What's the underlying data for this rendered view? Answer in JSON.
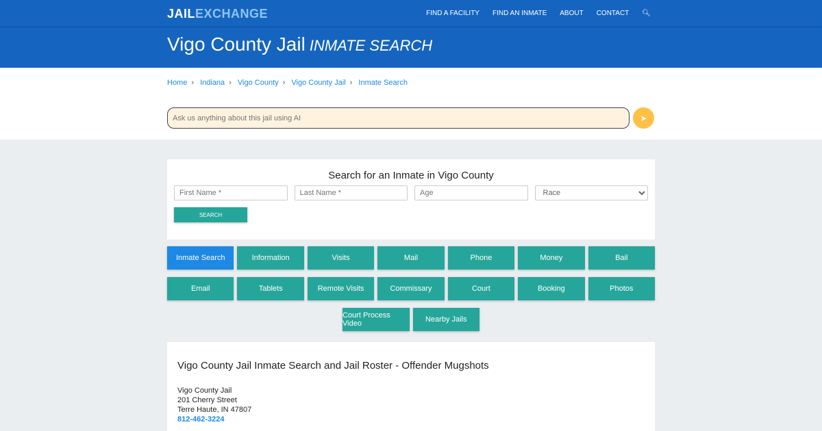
{
  "nav": {
    "logo_a": "JAIL",
    "logo_b": "EXCHANGE",
    "items": [
      "FIND A FACILITY",
      "FIND AN INMATE",
      "ABOUT",
      "CONTACT"
    ]
  },
  "hero": {
    "title": "Vigo County Jail",
    "subtitle": "INMATE SEARCH"
  },
  "breadcrumb": [
    "Home",
    "Indiana",
    "Vigo County",
    "Vigo County Jail",
    "Inmate Search"
  ],
  "ai": {
    "placeholder": "Ask us anything about this jail using AI"
  },
  "search": {
    "title": "Search for an Inmate in Vigo County",
    "first": "First Name *",
    "last": "Last Name *",
    "age": "Age",
    "race": "Race",
    "button": "SEARCH"
  },
  "buttons": [
    [
      "Inmate Search",
      "Information",
      "Visits",
      "Mail",
      "Phone",
      "Money",
      "Bail"
    ],
    [
      "Email",
      "Tablets",
      "Remote Visits",
      "Commissary",
      "Court",
      "Booking",
      "Photos"
    ],
    [
      "Court Process Video",
      "Nearby Jails"
    ]
  ],
  "info": {
    "title": "Vigo County Jail Inmate Search and Jail Roster - Offender Mugshots",
    "name": "Vigo County Jail",
    "street": "201 Cherry Street",
    "city": "Terre Haute, IN 47807",
    "phone": "812-462-3224"
  }
}
